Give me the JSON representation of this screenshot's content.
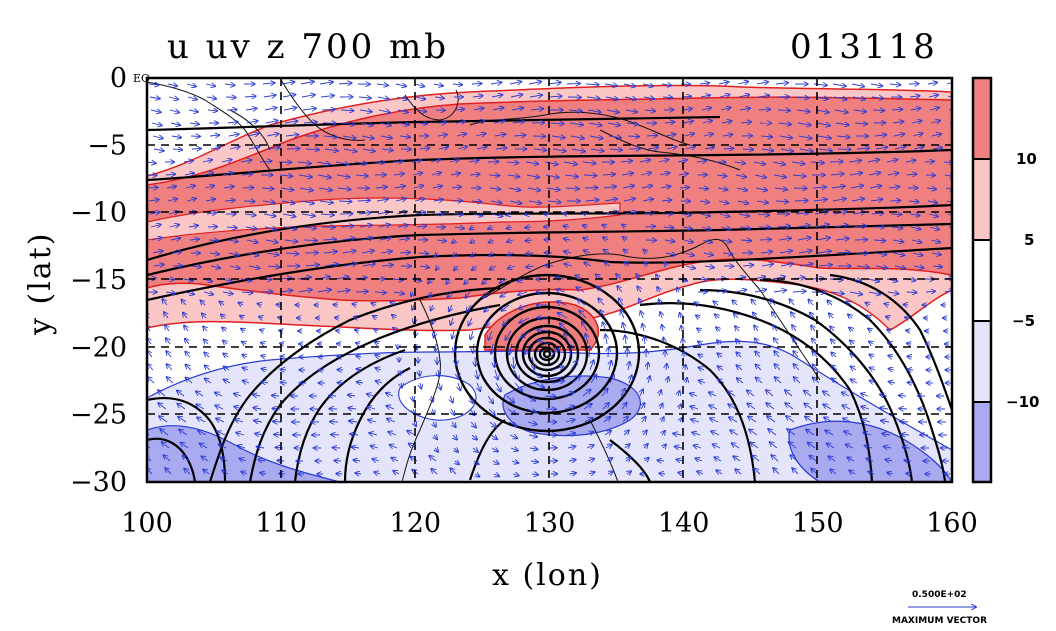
{
  "title_left": "u uv z 700 mb",
  "title_right": "013118",
  "x_axis_label": "x (lon)",
  "y_axis_label": "y (lat)",
  "x_ticks": [
    "100",
    "110",
    "120",
    "130",
    "140",
    "150",
    "160"
  ],
  "y_ticks": [
    "0",
    "−5",
    "−10",
    "−15",
    "−20",
    "−25",
    "−30"
  ],
  "y_tick_values": [
    0,
    -5,
    -10,
    -15,
    -20,
    -25,
    -30
  ],
  "eq_label": "EQ",
  "colorbar": {
    "labels": [
      "10",
      "5",
      "−5",
      "−10"
    ],
    "colors": [
      "#f08080",
      "#fbc6c6",
      "#ffffff",
      "#e4e4fa",
      "#aaaaf0"
    ]
  },
  "vector_ref": {
    "magnitude": "0.500E+02",
    "caption": "MAXIMUM VECTOR"
  },
  "chart_data": {
    "type": "heatmap",
    "title": "u uv z 700 mb",
    "xlabel": "x (lon)",
    "ylabel": "y (lat)",
    "xlim": [
      100,
      160
    ],
    "ylim": [
      -30,
      0
    ],
    "fill_levels": [
      -10,
      -5,
      5,
      10
    ],
    "cyclone_center": [
      130,
      -20.5
    ],
    "grid": true
  }
}
